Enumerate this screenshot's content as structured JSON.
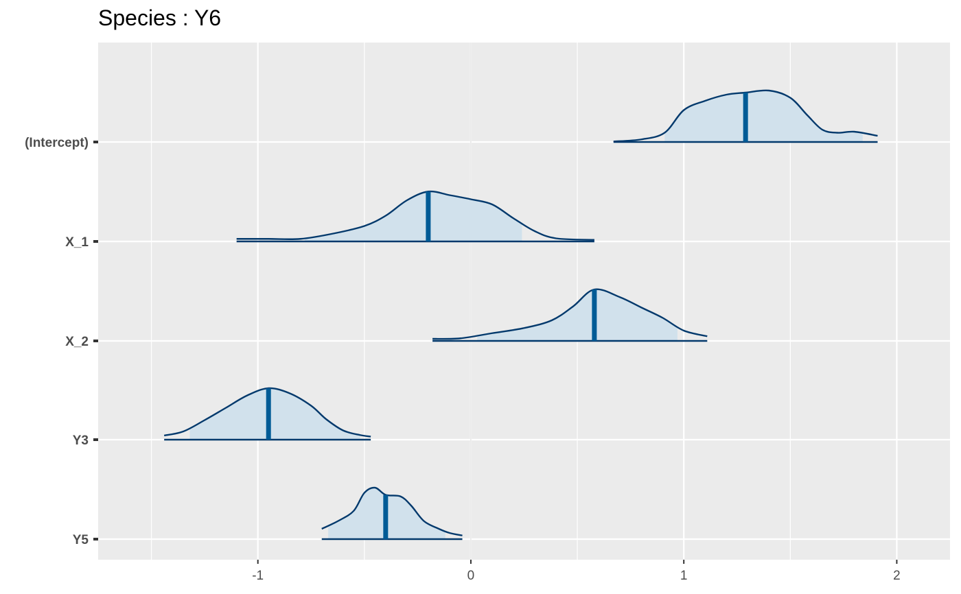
{
  "chart_data": {
    "type": "ridgeline-density",
    "title": "Species : Y6",
    "xlabel": "",
    "ylabel": "",
    "xlim": [
      -1.75,
      2.25
    ],
    "x_ticks": [
      -1,
      0,
      1,
      2
    ],
    "x_tick_labels": [
      "-1",
      "0",
      "1",
      "2"
    ],
    "categories": [
      "(Intercept)",
      "X_1",
      "X_2",
      "Y3",
      "Y5"
    ],
    "grid": true,
    "legend": "none",
    "colors": {
      "panel_bg": "#EBEBEB",
      "grid": "#FFFFFF",
      "outline": "#03396C",
      "fill": "#D1E1EC",
      "median_line": "#005B96",
      "zero_line": "#D9D9D9"
    },
    "series": [
      {
        "name": "(Intercept)",
        "median": 1.29,
        "interval": [
          0.91,
          1.84
        ],
        "range": [
          0.67,
          1.91
        ],
        "density": [
          [
            0.67,
            0.01
          ],
          [
            0.8,
            0.05
          ],
          [
            0.91,
            0.18
          ],
          [
            1.0,
            0.62
          ],
          [
            1.1,
            0.8
          ],
          [
            1.2,
            0.92
          ],
          [
            1.29,
            0.96
          ],
          [
            1.4,
            1.0
          ],
          [
            1.5,
            0.86
          ],
          [
            1.58,
            0.52
          ],
          [
            1.65,
            0.24
          ],
          [
            1.72,
            0.18
          ],
          [
            1.8,
            0.2
          ],
          [
            1.91,
            0.12
          ]
        ]
      },
      {
        "name": "X_1",
        "median": -0.2,
        "interval": [
          -0.78,
          0.24
        ],
        "range": [
          -1.1,
          0.58
        ],
        "density": [
          [
            -1.1,
            0.05
          ],
          [
            -0.95,
            0.05
          ],
          [
            -0.8,
            0.05
          ],
          [
            -0.65,
            0.15
          ],
          [
            -0.5,
            0.3
          ],
          [
            -0.4,
            0.5
          ],
          [
            -0.3,
            0.8
          ],
          [
            -0.2,
            0.97
          ],
          [
            -0.1,
            0.9
          ],
          [
            0.0,
            0.82
          ],
          [
            0.1,
            0.72
          ],
          [
            0.2,
            0.45
          ],
          [
            0.3,
            0.2
          ],
          [
            0.4,
            0.06
          ],
          [
            0.58,
            0.03
          ]
        ]
      },
      {
        "name": "X_2",
        "median": 0.58,
        "interval": [
          0.03,
          0.97
        ],
        "range": [
          -0.18,
          1.11
        ],
        "density": [
          [
            -0.18,
            0.04
          ],
          [
            -0.05,
            0.05
          ],
          [
            0.1,
            0.15
          ],
          [
            0.25,
            0.25
          ],
          [
            0.38,
            0.4
          ],
          [
            0.48,
            0.67
          ],
          [
            0.58,
            1.0
          ],
          [
            0.7,
            0.85
          ],
          [
            0.8,
            0.65
          ],
          [
            0.9,
            0.45
          ],
          [
            1.0,
            0.2
          ],
          [
            1.11,
            0.09
          ]
        ]
      },
      {
        "name": "Y3",
        "median": -0.95,
        "interval": [
          -1.32,
          -0.52
        ],
        "range": [
          -1.44,
          -0.47
        ],
        "density": [
          [
            -1.44,
            0.08
          ],
          [
            -1.35,
            0.16
          ],
          [
            -1.25,
            0.38
          ],
          [
            -1.15,
            0.62
          ],
          [
            -1.05,
            0.86
          ],
          [
            -0.95,
            1.0
          ],
          [
            -0.85,
            0.9
          ],
          [
            -0.75,
            0.66
          ],
          [
            -0.68,
            0.4
          ],
          [
            -0.6,
            0.18
          ],
          [
            -0.52,
            0.09
          ],
          [
            -0.47,
            0.06
          ]
        ]
      },
      {
        "name": "Y5",
        "median": -0.4,
        "interval": [
          -0.67,
          -0.12
        ],
        "range": [
          -0.7,
          -0.04
        ],
        "density": [
          [
            -0.7,
            0.2
          ],
          [
            -0.62,
            0.36
          ],
          [
            -0.55,
            0.55
          ],
          [
            -0.5,
            0.9
          ],
          [
            -0.45,
            1.0
          ],
          [
            -0.4,
            0.86
          ],
          [
            -0.33,
            0.83
          ],
          [
            -0.28,
            0.65
          ],
          [
            -0.22,
            0.35
          ],
          [
            -0.15,
            0.2
          ],
          [
            -0.1,
            0.12
          ],
          [
            -0.04,
            0.07
          ]
        ]
      }
    ]
  }
}
